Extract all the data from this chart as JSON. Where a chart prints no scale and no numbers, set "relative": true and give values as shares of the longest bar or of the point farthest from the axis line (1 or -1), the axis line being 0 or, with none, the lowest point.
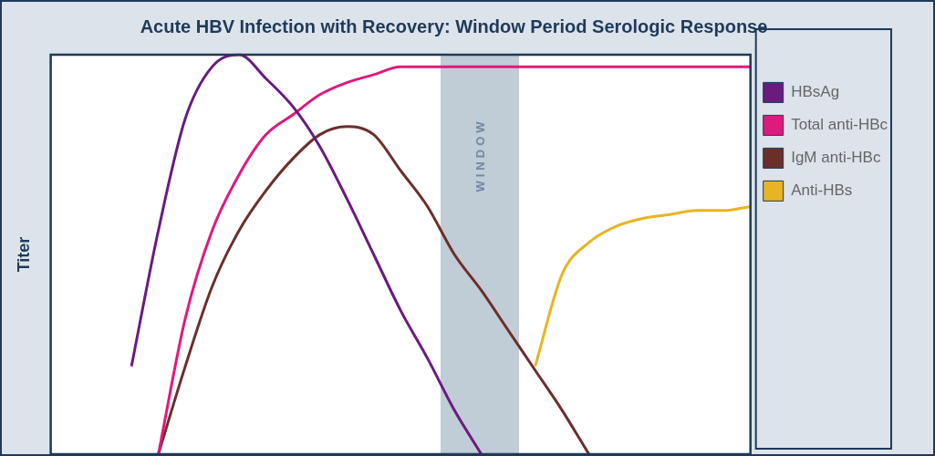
{
  "chart_data": {
    "type": "line",
    "title": "Acute HBV Infection with Recovery: Window Period Serologic Response",
    "ylabel": "Titer",
    "relative": true,
    "categories": [
      null,
      null,
      null,
      null,
      null,
      null,
      null,
      null,
      null,
      null,
      null,
      null,
      null,
      null,
      null,
      null,
      null,
      null,
      null,
      null,
      null,
      null,
      null,
      null,
      null,
      null,
      null
    ],
    "legend": "top right",
    "marker": "none",
    "line_style": "solid",
    "annotations": [
      "WINDOW"
    ],
    "series": [
      {
        "name": "HBsAg",
        "color": "#6a1b7f",
        "values": [
          null,
          null,
          null,
          0.22,
          0.56,
          0.84,
          0.97,
          1.0,
          0.94,
          0.87,
          0.77,
          0.64,
          0.5,
          0.36,
          0.24,
          0.11,
          0,
          null,
          null,
          null,
          null,
          null,
          null,
          null,
          null,
          null,
          null
        ]
      },
      {
        "name": "Total anti-HBc",
        "color": "#e0197d",
        "values": [
          null,
          null,
          null,
          null,
          0,
          0.34,
          0.56,
          0.7,
          0.8,
          0.85,
          0.9,
          0.93,
          0.95,
          0.97,
          0.97,
          0.97,
          0.97,
          0.97,
          0.97,
          0.97,
          0.97,
          0.97,
          0.97,
          0.97,
          0.97,
          0.97,
          0.97
        ]
      },
      {
        "name": "IgM anti-HBc",
        "color": "#6b2f2a",
        "values": [
          null,
          null,
          null,
          null,
          0,
          0.22,
          0.42,
          0.56,
          0.66,
          0.74,
          0.8,
          0.82,
          0.8,
          0.71,
          0.62,
          0.5,
          0.41,
          0.31,
          0.21,
          0.11,
          0,
          null,
          null,
          null,
          null,
          null,
          null
        ]
      },
      {
        "name": "Anti-HBs",
        "color": "#e8b423",
        "values": [
          null,
          null,
          null,
          null,
          null,
          null,
          null,
          null,
          null,
          null,
          null,
          null,
          null,
          null,
          null,
          null,
          null,
          null,
          0.22,
          0.45,
          0.53,
          0.57,
          0.59,
          0.6,
          0.61,
          0.61,
          0.62
        ]
      }
    ]
  }
}
